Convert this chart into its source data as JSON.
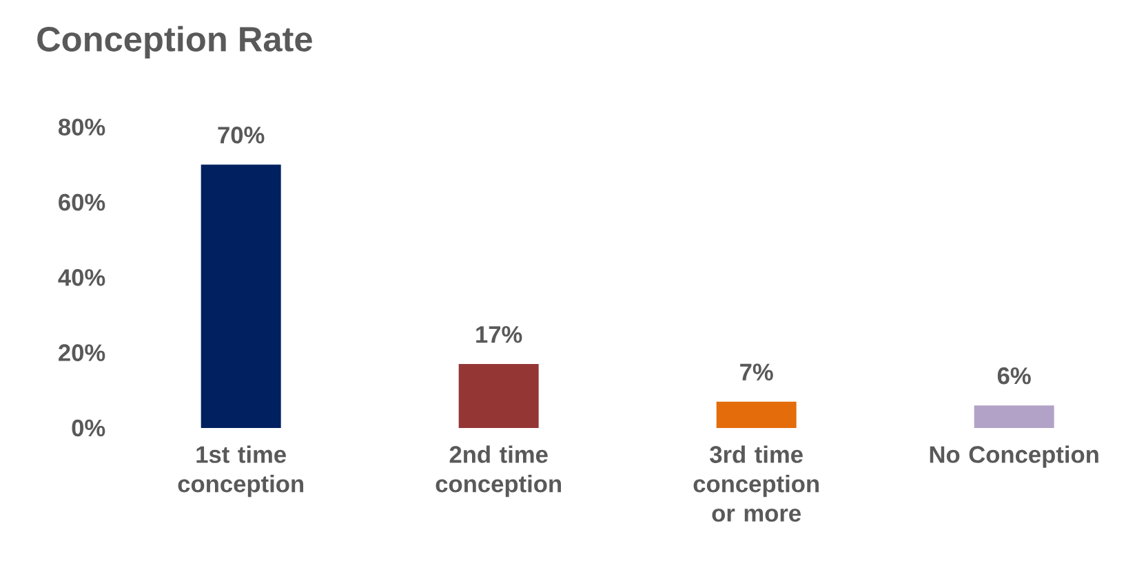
{
  "chart_data": {
    "type": "bar",
    "title": "Conception Rate",
    "categories": [
      "1st time conception",
      "2nd time conception",
      "3rd time conception or more",
      "No Conception"
    ],
    "values": [
      70,
      17,
      7,
      6
    ],
    "colors": [
      "#002060",
      "#943634",
      "#e46c0a",
      "#b3a2c7"
    ],
    "value_labels": [
      "70%",
      "17%",
      "7%",
      "6%"
    ],
    "ylim": [
      0,
      80
    ],
    "yticks": [
      {
        "value": 0,
        "label": "0%"
      },
      {
        "value": 20,
        "label": "20%"
      },
      {
        "value": 40,
        "label": "40%"
      },
      {
        "value": 60,
        "label": "60%"
      },
      {
        "value": 80,
        "label": "80%"
      }
    ],
    "grid": false
  }
}
